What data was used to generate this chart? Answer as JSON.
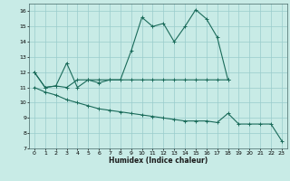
{
  "xlabel": "Humidex (Indice chaleur)",
  "ylabel": "",
  "background_color": "#c8ebe6",
  "grid_color": "#99cccc",
  "line_color": "#1a6b5a",
  "xlim": [
    -0.5,
    23.5
  ],
  "ylim": [
    7,
    16.5
  ],
  "yticks": [
    7,
    8,
    9,
    10,
    11,
    12,
    13,
    14,
    15,
    16
  ],
  "xticks": [
    0,
    1,
    2,
    3,
    4,
    5,
    6,
    7,
    8,
    9,
    10,
    11,
    12,
    13,
    14,
    15,
    16,
    17,
    18,
    19,
    20,
    21,
    22,
    23
  ],
  "line1_x": [
    0,
    1,
    2,
    3,
    4,
    5,
    6,
    7,
    8,
    9,
    10,
    11,
    12,
    13,
    14,
    15,
    16,
    17,
    18
  ],
  "line1_y": [
    12.0,
    11.0,
    11.1,
    12.6,
    11.0,
    11.5,
    11.3,
    11.5,
    11.5,
    13.4,
    15.6,
    15.0,
    15.2,
    14.0,
    15.0,
    16.1,
    15.5,
    14.3,
    11.5
  ],
  "line2_x": [
    0,
    1,
    2,
    3,
    4,
    5,
    6,
    7,
    8,
    9,
    10,
    11,
    12,
    13,
    14,
    15,
    16,
    17,
    18
  ],
  "line2_y": [
    12.0,
    11.0,
    11.1,
    11.0,
    11.5,
    11.5,
    11.5,
    11.5,
    11.5,
    11.5,
    11.5,
    11.5,
    11.5,
    11.5,
    11.5,
    11.5,
    11.5,
    11.5,
    11.5
  ],
  "line3_x": [
    0,
    1,
    2,
    3,
    4,
    5,
    6,
    7,
    8,
    9,
    10,
    11,
    12,
    13,
    14,
    15,
    16,
    17,
    18,
    19,
    20,
    21,
    22,
    23
  ],
  "line3_y": [
    11.0,
    10.7,
    10.5,
    10.2,
    10.0,
    9.8,
    9.6,
    9.5,
    9.4,
    9.3,
    9.2,
    9.1,
    9.0,
    8.9,
    8.8,
    8.8,
    8.8,
    8.7,
    9.3,
    8.6,
    8.6,
    8.6,
    8.6,
    7.5
  ]
}
